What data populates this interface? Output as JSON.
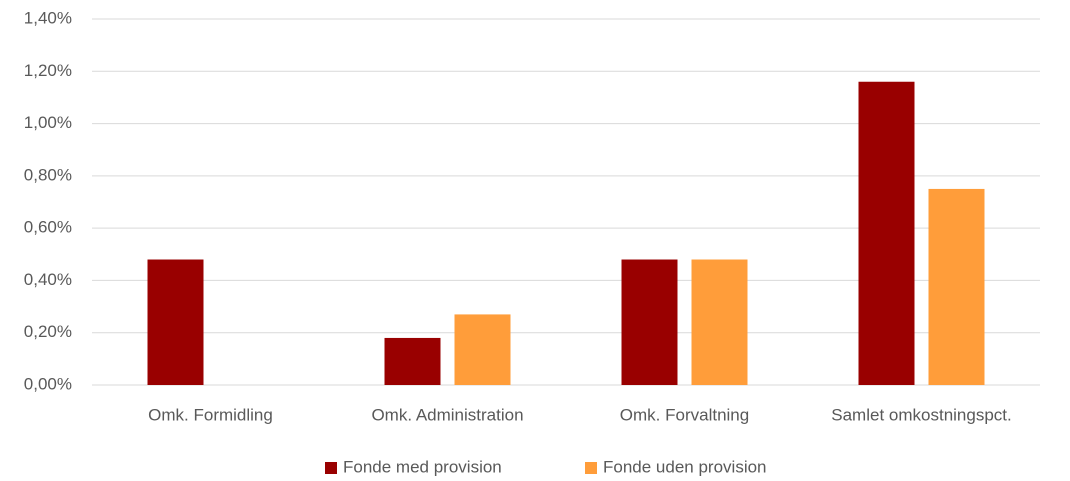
{
  "chart_data": {
    "type": "bar",
    "categories": [
      "Omk. Formidling",
      "Omk. Administration",
      "Omk. Forvaltning",
      "Samlet omkostningspct."
    ],
    "series": [
      {
        "name": "Fonde med provision",
        "color": "#990000",
        "values": [
          0.48,
          0.18,
          0.48,
          1.16
        ]
      },
      {
        "name": "Fonde uden provision",
        "color": "#ff9d3a",
        "values": [
          0,
          0.27,
          0.48,
          0.75
        ]
      }
    ],
    "ylim": [
      0,
      1.4
    ],
    "yticks": [
      {
        "value": 0,
        "label": "0,00%"
      },
      {
        "value": 0.2,
        "label": "0,20%"
      },
      {
        "value": 0.4,
        "label": "0,40%"
      },
      {
        "value": 0.6,
        "label": "0,60%"
      },
      {
        "value": 0.8,
        "label": "0,80%"
      },
      {
        "value": 1.0,
        "label": "1,00%"
      },
      {
        "value": 1.2,
        "label": "1,20%"
      },
      {
        "value": 1.4,
        "label": "1,40%"
      }
    ],
    "grid": true,
    "legend": "bottom"
  }
}
